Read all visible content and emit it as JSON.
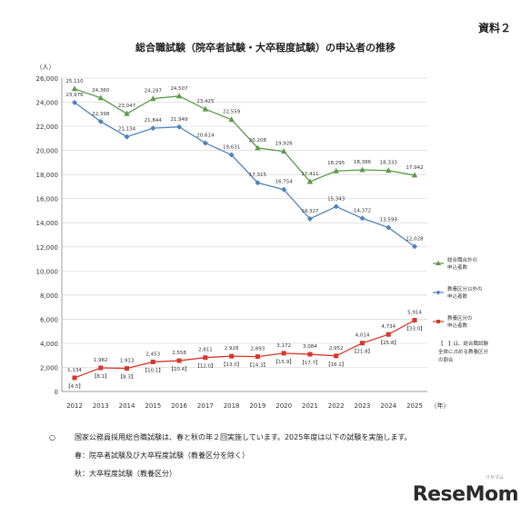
{
  "doc_label": "資料２",
  "notes": {
    "line1_mark": "○",
    "line1": "国家公務員採用総合職試験は、春と秋の年２回実施しています。2025年度は以下の試験を実施します。",
    "line2": "春：院卒者試験及び大卒程度試験（教養区分を除く）",
    "line3": "秋：大卒程度試験（教養区分）"
  },
  "watermark": "ReseMom",
  "watermark_sub": "リセマム",
  "colors": {
    "total": "#5a9a4a",
    "non_kyoyo": "#4f81bd",
    "kyoyo": "#d9362b"
  },
  "chart_data": {
    "type": "line",
    "title": "総合職試験（院卒者試験・大卒程度試験）の申込者の推移",
    "ylabel": "（人）",
    "xlabel": "（年）",
    "ylim": [
      0,
      26000
    ],
    "yticks": [
      0,
      2000,
      4000,
      6000,
      8000,
      10000,
      12000,
      14000,
      16000,
      18000,
      20000,
      22000,
      24000,
      26000
    ],
    "ytick_labels": [
      "0",
      "2,000",
      "4,000",
      "6,000",
      "8,000",
      "10,000",
      "12,000",
      "14,000",
      "16,000",
      "18,000",
      "20,000",
      "22,000",
      "24,000",
      "26,000"
    ],
    "grid": true,
    "legend_position": "right",
    "categories": [
      "2012",
      "2013",
      "2014",
      "2015",
      "2016",
      "2017",
      "2018",
      "2019",
      "2020",
      "2021",
      "2022",
      "2023",
      "2024",
      "2025"
    ],
    "series": [
      {
        "name": "総合職合計の申込者数",
        "marker": "triangle",
        "color": "#5a9a4a",
        "values": [
          25110,
          24360,
          23047,
          24297,
          24507,
          23425,
          22559,
          20208,
          19926,
          17411,
          18295,
          18386,
          18333,
          17942
        ],
        "labels": [
          "25,110",
          "24,360",
          "23,047",
          "24,297",
          "24,507",
          "23,425",
          "22,559",
          "20,208",
          "19,926",
          "17,411",
          "18,295",
          "18,386",
          "18,333",
          "17,942"
        ]
      },
      {
        "name": "教養区分以外の申込者数",
        "marker": "diamond",
        "color": "#4f81bd",
        "values": [
          23976,
          22398,
          21134,
          21844,
          21949,
          20614,
          19631,
          17315,
          16754,
          14327,
          15343,
          14372,
          13599,
          12028
        ],
        "labels": [
          "23,976",
          "22,398",
          "21,134",
          "21,844",
          "21,949",
          "20,614",
          "19,631",
          "17,315",
          "16,754",
          "14,327",
          "15,343",
          "14,372",
          "13,599",
          "12,028"
        ]
      },
      {
        "name": "教養区分の申込者数",
        "marker": "square",
        "color": "#d9362b",
        "values": [
          1134,
          1962,
          1913,
          2453,
          2558,
          2811,
          2928,
          2893,
          3172,
          3084,
          2952,
          4014,
          4734,
          5914
        ],
        "labels": [
          "1,134",
          "1,962",
          "1,913",
          "2,453",
          "2,558",
          "2,811",
          "2,928",
          "2,893",
          "3,172",
          "3,084",
          "2,952",
          "4,014",
          "4,734",
          "5,914"
        ],
        "ratio_labels": [
          "4.5",
          "8.1",
          "8.3",
          "10.1",
          "10.4",
          "12.0",
          "13.0",
          "14.3",
          "15.9",
          "17.7",
          "16.1",
          "21.8",
          "25.8",
          "33.0"
        ]
      }
    ],
    "legend_note": "【　】は、総合職試験全体に占める教養区分の割合"
  }
}
